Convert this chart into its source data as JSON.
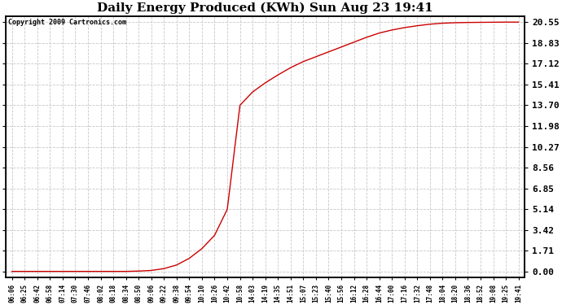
{
  "title": "Daily Energy Produced (KWh) Sun Aug 23 19:41",
  "copyright_text": "Copyright 2009 Cartronics.com",
  "line_color": "#cc0000",
  "background_color": "#ffffff",
  "plot_bg_color": "#ffffff",
  "grid_color": "#c8c8c8",
  "yticks": [
    0.0,
    1.71,
    3.42,
    5.14,
    6.85,
    8.56,
    10.27,
    11.98,
    13.7,
    15.41,
    17.12,
    18.83,
    20.55
  ],
  "ymax": 20.55,
  "ymin": 0.0,
  "x_labels": [
    "06:06",
    "06:25",
    "06:42",
    "06:58",
    "07:14",
    "07:30",
    "07:46",
    "08:02",
    "08:18",
    "08:34",
    "08:50",
    "09:06",
    "09:22",
    "09:38",
    "09:54",
    "10:10",
    "10:26",
    "10:42",
    "10:58",
    "14:03",
    "14:19",
    "14:35",
    "14:51",
    "15:07",
    "15:23",
    "15:40",
    "15:56",
    "16:12",
    "16:28",
    "16:44",
    "17:00",
    "17:16",
    "17:32",
    "17:48",
    "18:04",
    "18:20",
    "18:36",
    "18:52",
    "19:08",
    "19:25",
    "19:41"
  ],
  "y_values": [
    0.02,
    0.02,
    0.02,
    0.02,
    0.02,
    0.02,
    0.02,
    0.02,
    0.02,
    0.02,
    0.05,
    0.1,
    0.25,
    0.55,
    1.1,
    1.9,
    3.0,
    5.14,
    13.7,
    14.8,
    15.55,
    16.2,
    16.8,
    17.3,
    17.7,
    18.1,
    18.5,
    18.9,
    19.3,
    19.65,
    19.9,
    20.1,
    20.25,
    20.38,
    20.46,
    20.5,
    20.52,
    20.53,
    20.54,
    20.55,
    20.55
  ]
}
